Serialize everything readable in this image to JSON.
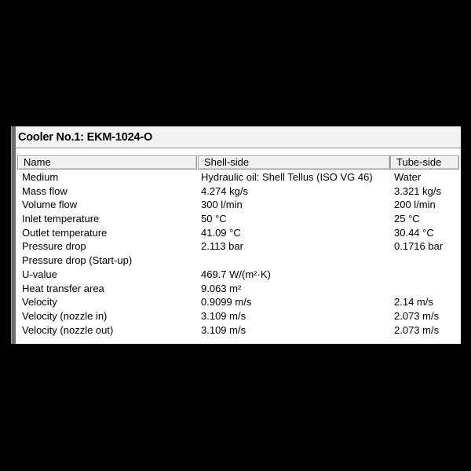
{
  "panel": {
    "title": "Cooler No.1: EKM-1024-O"
  },
  "table": {
    "columns": [
      "Name",
      "Shell-side",
      "Tube-side"
    ],
    "rows": [
      {
        "name": "Medium",
        "shell": "Hydraulic oil: Shell Tellus (ISO VG 46)",
        "tube": "Water"
      },
      {
        "name": "Mass flow",
        "shell": "4.274 kg/s",
        "tube": "3.321 kg/s"
      },
      {
        "name": "Volume flow",
        "shell": "300 l/min",
        "tube": "200 l/min"
      },
      {
        "name": "Inlet temperature",
        "shell": "50 °C",
        "tube": "25 °C"
      },
      {
        "name": "Outlet temperature",
        "shell": "41.09 °C",
        "tube": "30.44 °C"
      },
      {
        "name": "Pressure drop",
        "shell": "2.113 bar",
        "tube": "0.1716 bar"
      },
      {
        "name": "Pressure drop (Start-up)",
        "shell": "",
        "tube": ""
      },
      {
        "name": "U-value",
        "shell": "469.7 W/(m²·K)",
        "tube": ""
      },
      {
        "name": "Heat transfer area",
        "shell": "9.063 m²",
        "tube": ""
      },
      {
        "name": "Velocity",
        "shell": "0.9099 m/s",
        "tube": "2.14 m/s"
      },
      {
        "name": "Velocity (nozzle in)",
        "shell": "3.109 m/s",
        "tube": "2.073 m/s"
      },
      {
        "name": "Velocity (nozzle out)",
        "shell": "3.109 m/s",
        "tube": "2.073 m/s"
      }
    ]
  },
  "colors": {
    "background": "#000000",
    "panel_bg": "#ffffff",
    "titlebar_bg": "#f3f3f3",
    "header_bg": "#f1f1f1",
    "border_gray": "#8a8a8a",
    "text": "#000000"
  }
}
